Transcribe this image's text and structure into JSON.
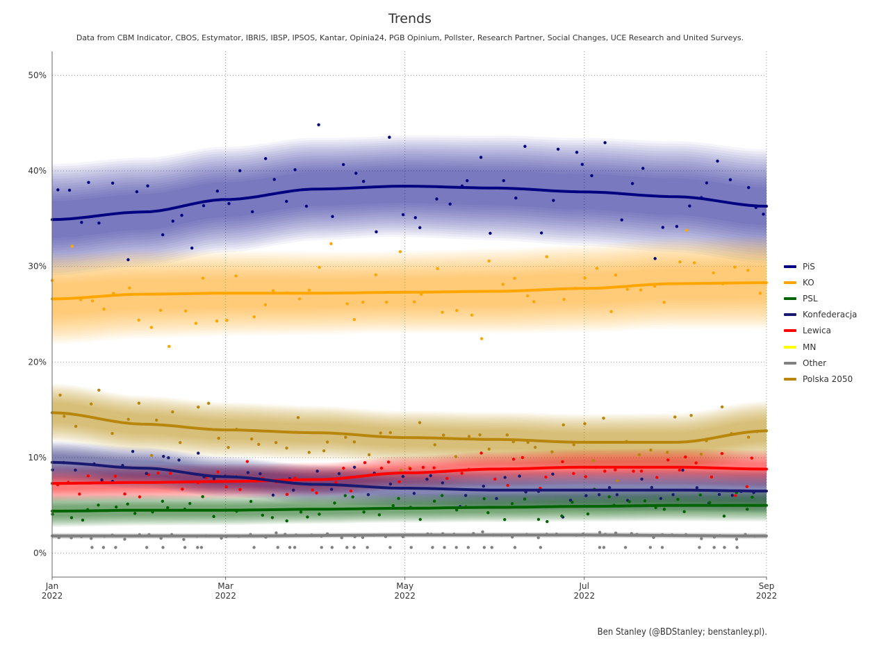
{
  "title": "Trends",
  "subtitle": "Data from CBM Indicator, CBOS, Estymator, IBRIS, IBSP, IPSOS, Kantar, Opinia24, PGB Opinium, Pollster, Research Partner, Social Changes, UCE Research and United Surveys.",
  "credit": "Ben Stanley (@BDStanley; benstanley.pl).",
  "chart_data": {
    "type": "line",
    "x_axis": {
      "range": [
        "2022-01-01",
        "2022-09-01"
      ],
      "ticks": [
        {
          "date": "2022-01-01",
          "label": [
            "Jan",
            "2022"
          ]
        },
        {
          "date": "2022-03-01",
          "label": [
            "Mar",
            "2022"
          ]
        },
        {
          "date": "2022-05-01",
          "label": [
            "May",
            "2022"
          ]
        },
        {
          "date": "2022-07-01",
          "label": [
            "Jul",
            "2022"
          ]
        },
        {
          "date": "2022-09-01",
          "label": [
            "Sep",
            "2022"
          ]
        }
      ]
    },
    "y_axis": {
      "range": [
        -2.5,
        52.5
      ],
      "ticks": [
        0,
        10,
        20,
        30,
        40,
        50
      ],
      "tick_labels": [
        "0%",
        "10%",
        "20%",
        "30%",
        "40%",
        "50%"
      ]
    },
    "grid": "dotted",
    "legend_position": "right",
    "series": [
      {
        "name": "PiS",
        "color": "#000080",
        "trend": [
          [
            "2022-01-01",
            34.9
          ],
          [
            "2022-02-01",
            35.7
          ],
          [
            "2022-03-01",
            37.0
          ],
          [
            "2022-04-01",
            38.1
          ],
          [
            "2022-05-01",
            38.4
          ],
          [
            "2022-06-01",
            38.2
          ],
          [
            "2022-07-01",
            37.8
          ],
          [
            "2022-08-01",
            37.3
          ],
          [
            "2022-09-01",
            36.3
          ]
        ],
        "band": [
          3.0,
          10.5
        ]
      },
      {
        "name": "KO",
        "color": "#FFA500",
        "trend": [
          [
            "2022-01-01",
            26.6
          ],
          [
            "2022-02-01",
            27.1
          ],
          [
            "2022-03-01",
            27.2
          ],
          [
            "2022-04-01",
            27.2
          ],
          [
            "2022-05-01",
            27.3
          ],
          [
            "2022-06-01",
            27.4
          ],
          [
            "2022-07-01",
            27.7
          ],
          [
            "2022-08-01",
            28.2
          ],
          [
            "2022-09-01",
            28.3
          ]
        ],
        "band": [
          2.5,
          8.5
        ]
      },
      {
        "name": "PSL",
        "color": "#006400",
        "trend": [
          [
            "2022-01-01",
            4.4
          ],
          [
            "2022-02-01",
            4.5
          ],
          [
            "2022-03-01",
            4.5
          ],
          [
            "2022-04-01",
            4.6
          ],
          [
            "2022-05-01",
            4.7
          ],
          [
            "2022-06-01",
            4.8
          ],
          [
            "2022-07-01",
            4.9
          ],
          [
            "2022-08-01",
            5.0
          ],
          [
            "2022-09-01",
            5.0
          ]
        ],
        "band": [
          0.8,
          3.0
        ]
      },
      {
        "name": "Konfederacja",
        "color": "#191970",
        "trend": [
          [
            "2022-01-01",
            9.5
          ],
          [
            "2022-02-01",
            8.9
          ],
          [
            "2022-03-01",
            8.0
          ],
          [
            "2022-04-01",
            7.2
          ],
          [
            "2022-05-01",
            6.8
          ],
          [
            "2022-06-01",
            6.6
          ],
          [
            "2022-07-01",
            6.6
          ],
          [
            "2022-08-01",
            6.6
          ],
          [
            "2022-09-01",
            6.5
          ]
        ],
        "band": [
          1.2,
          4.0
        ]
      },
      {
        "name": "Lewica",
        "color": "#FF0000",
        "trend": [
          [
            "2022-01-01",
            7.3
          ],
          [
            "2022-02-01",
            7.4
          ],
          [
            "2022-03-01",
            7.5
          ],
          [
            "2022-04-01",
            7.7
          ],
          [
            "2022-05-01",
            8.4
          ],
          [
            "2022-06-01",
            8.8
          ],
          [
            "2022-07-01",
            9.0
          ],
          [
            "2022-08-01",
            9.0
          ],
          [
            "2022-09-01",
            8.8
          ]
        ],
        "band": [
          1.0,
          3.5
        ]
      },
      {
        "name": "MN",
        "color": "#FFFF00",
        "trend": [],
        "band": [
          0,
          0
        ]
      },
      {
        "name": "Other",
        "color": "#808080",
        "trend": [
          [
            "2022-01-01",
            1.8
          ],
          [
            "2022-03-01",
            1.8
          ],
          [
            "2022-05-01",
            1.9
          ],
          [
            "2022-07-01",
            1.9
          ],
          [
            "2022-09-01",
            1.8
          ]
        ],
        "band": [
          0.2,
          0.6
        ]
      },
      {
        "name": "Polska 2050",
        "color": "#B8860B",
        "trend": [
          [
            "2022-01-01",
            14.7
          ],
          [
            "2022-02-01",
            13.5
          ],
          [
            "2022-03-01",
            12.9
          ],
          [
            "2022-04-01",
            12.6
          ],
          [
            "2022-05-01",
            12.1
          ],
          [
            "2022-06-01",
            11.9
          ],
          [
            "2022-07-01",
            11.6
          ],
          [
            "2022-08-01",
            11.6
          ],
          [
            "2022-09-01",
            12.8
          ]
        ],
        "band": [
          1.6,
          5.5
        ]
      }
    ]
  }
}
